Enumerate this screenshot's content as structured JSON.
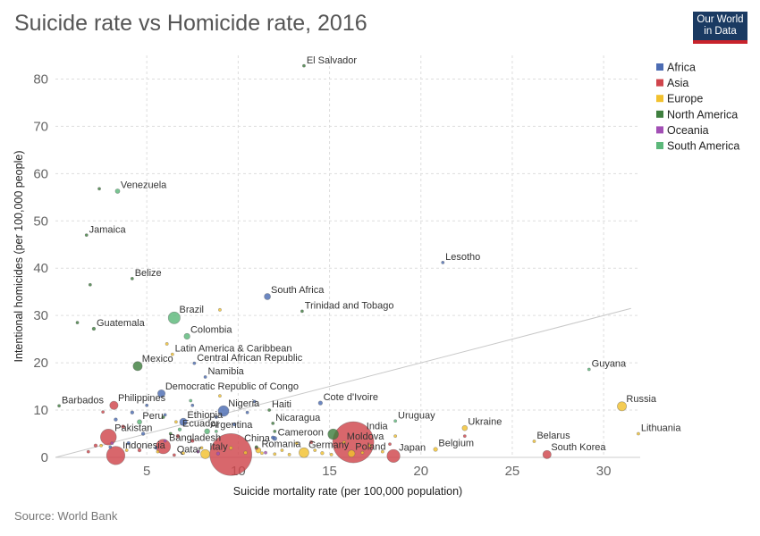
{
  "header": {
    "title": "Suicide rate vs Homicide rate, 2016",
    "logo_line1": "Our World",
    "logo_line2": "in Data"
  },
  "footer": {
    "source": "Source: World Bank"
  },
  "chart_data": {
    "type": "scatter",
    "title": "Suicide rate vs Homicide rate, 2016",
    "xlabel": "Suicide mortality rate (per 100,000 population)",
    "ylabel": "Intentional homicides (per 100,000 people)",
    "xlim": [
      0,
      32
    ],
    "ylim": [
      0,
      85
    ],
    "xticks": [
      5,
      10,
      15,
      20,
      25,
      30
    ],
    "yticks": [
      0,
      10,
      20,
      30,
      40,
      50,
      60,
      70,
      80
    ],
    "grid": true,
    "legend_position": "right",
    "reference_line": {
      "from": [
        0,
        0
      ],
      "to": [
        31.5,
        31.5
      ]
    },
    "colors": {
      "Africa": "#4c6cb3",
      "Asia": "#d0454c",
      "Europe": "#f2c12e",
      "North America": "#3f7f3f",
      "Oceania": "#a24fb5",
      "South America": "#5cb87a",
      "Aggregate": "#f2c12e"
    },
    "legend": [
      "Africa",
      "Asia",
      "Europe",
      "North America",
      "Oceania",
      "South America"
    ],
    "points": [
      {
        "label": "El Salvador",
        "region": "North America",
        "x": 13.6,
        "y": 82.8,
        "pop": 0.3
      },
      {
        "label": "Venezuela",
        "region": "South America",
        "x": 3.4,
        "y": 56.3,
        "pop": 1.5
      },
      {
        "label": "",
        "region": "North America",
        "x": 2.4,
        "y": 56.8,
        "pop": 0.3
      },
      {
        "label": "Jamaica",
        "region": "North America",
        "x": 1.7,
        "y": 47.0,
        "pop": 0.3
      },
      {
        "label": "Lesotho",
        "region": "Africa",
        "x": 21.2,
        "y": 41.2,
        "pop": 0.2
      },
      {
        "label": "Belize",
        "region": "North America",
        "x": 4.2,
        "y": 37.8,
        "pop": 0.1
      },
      {
        "label": "",
        "region": "North America",
        "x": 1.9,
        "y": 36.5,
        "pop": 0.1
      },
      {
        "label": "South Africa",
        "region": "Africa",
        "x": 11.6,
        "y": 34.0,
        "pop": 2.8
      },
      {
        "label": "Trinidad and Tobago",
        "region": "North America",
        "x": 13.5,
        "y": 30.9,
        "pop": 0.2
      },
      {
        "label": "Brazil",
        "region": "South America",
        "x": 6.5,
        "y": 29.5,
        "pop": 10
      },
      {
        "label": "",
        "region": "Europe",
        "x": 9.0,
        "y": 31.2,
        "pop": 0.1
      },
      {
        "label": "",
        "region": "North America",
        "x": 1.2,
        "y": 28.5,
        "pop": 0.1
      },
      {
        "label": "Guatemala",
        "region": "North America",
        "x": 2.1,
        "y": 27.2,
        "pop": 0.8
      },
      {
        "label": "Colombia",
        "region": "South America",
        "x": 7.2,
        "y": 25.6,
        "pop": 2.5
      },
      {
        "label": "Latin America & Caribbean",
        "region": "Aggregate",
        "x": 6.4,
        "y": 21.8,
        "pop": 0.3
      },
      {
        "label": "Central African Republic",
        "region": "Africa",
        "x": 7.6,
        "y": 19.9,
        "pop": 0.2
      },
      {
        "label": "Mexico",
        "region": "North America",
        "x": 4.5,
        "y": 19.3,
        "pop": 6
      },
      {
        "label": "",
        "region": "Europe",
        "x": 6.1,
        "y": 24.0,
        "pop": 0.1
      },
      {
        "label": "Namibia",
        "region": "Africa",
        "x": 8.2,
        "y": 17.0,
        "pop": 0.2
      },
      {
        "label": "Guyana",
        "region": "South America",
        "x": 29.2,
        "y": 18.6,
        "pop": 0.3
      },
      {
        "label": "Democratic Republic of Congo",
        "region": "Africa",
        "x": 5.8,
        "y": 13.5,
        "pop": 4
      },
      {
        "label": "Philippines",
        "region": "Asia",
        "x": 3.2,
        "y": 11.0,
        "pop": 5
      },
      {
        "label": "Barbados",
        "region": "North America",
        "x": 0.2,
        "y": 10.9,
        "pop": 0.1
      },
      {
        "label": "Cote d'Ivoire",
        "region": "Africa",
        "x": 14.5,
        "y": 11.5,
        "pop": 1.2
      },
      {
        "label": "Nigeria",
        "region": "Africa",
        "x": 9.2,
        "y": 9.8,
        "pop": 8
      },
      {
        "label": "Haiti",
        "region": "North America",
        "x": 11.7,
        "y": 10.0,
        "pop": 0.5
      },
      {
        "label": "Russia",
        "region": "Europe",
        "x": 31.0,
        "y": 10.8,
        "pop": 6
      },
      {
        "label": "Ethiopia",
        "region": "Africa",
        "x": 7.0,
        "y": 7.5,
        "pop": 4
      },
      {
        "label": "Peru",
        "region": "South America",
        "x": 4.6,
        "y": 7.5,
        "pop": 1.5
      },
      {
        "label": "Ecuador",
        "region": "South America",
        "x": 6.8,
        "y": 5.9,
        "pop": 0.8
      },
      {
        "label": "Argentina",
        "region": "South America",
        "x": 8.3,
        "y": 5.5,
        "pop": 2
      },
      {
        "label": "Nicaragua",
        "region": "North America",
        "x": 11.9,
        "y": 7.2,
        "pop": 0.3
      },
      {
        "label": "Uruguay",
        "region": "South America",
        "x": 18.6,
        "y": 7.7,
        "pop": 0.2
      },
      {
        "label": "Ukraine",
        "region": "Europe",
        "x": 22.4,
        "y": 6.2,
        "pop": 2
      },
      {
        "label": "India",
        "region": "Asia",
        "x": 16.3,
        "y": 3.2,
        "pop": 120
      },
      {
        "label": "Cameroon",
        "region": "Africa",
        "x": 12.0,
        "y": 4.0,
        "pop": 1.3
      },
      {
        "label": "",
        "region": "North America",
        "x": 15.2,
        "y": 4.9,
        "pop": 8
      },
      {
        "label": "Pakistan",
        "region": "Asia",
        "x": 2.9,
        "y": 4.3,
        "pop": 18
      },
      {
        "label": "Lithuania",
        "region": "Europe",
        "x": 31.9,
        "y": 5.0,
        "pop": 0.2
      },
      {
        "label": "Bangladesh",
        "region": "Asia",
        "x": 5.9,
        "y": 2.3,
        "pop": 15
      },
      {
        "label": "Moldova",
        "region": "Europe",
        "x": 15.8,
        "y": 3.2,
        "pop": 0.3
      },
      {
        "label": "Belarus",
        "region": "Europe",
        "x": 26.2,
        "y": 3.4,
        "pop": 0.5
      },
      {
        "label": "China",
        "region": "Asia",
        "x": 9.6,
        "y": 0.6,
        "pop": 125
      },
      {
        "label": "Indonesia",
        "region": "Asia",
        "x": 3.3,
        "y": 0.4,
        "pop": 24
      },
      {
        "label": "Germany",
        "region": "Europe",
        "x": 13.6,
        "y": 1.0,
        "pop": 7
      },
      {
        "label": "Romania",
        "region": "Europe",
        "x": 11.1,
        "y": 1.5,
        "pop": 2
      },
      {
        "label": "Italy",
        "region": "Europe",
        "x": 8.2,
        "y": 0.7,
        "pop": 6
      },
      {
        "label": "Qatar",
        "region": "Asia",
        "x": 6.5,
        "y": 0.5,
        "pop": 0.3
      },
      {
        "label": "Poland",
        "region": "Europe",
        "x": 16.2,
        "y": 0.8,
        "pop": 3.5
      },
      {
        "label": "Belgium",
        "region": "Europe",
        "x": 20.8,
        "y": 1.7,
        "pop": 1.2
      },
      {
        "label": "Japan",
        "region": "Asia",
        "x": 18.5,
        "y": 0.3,
        "pop": 12
      },
      {
        "label": "South Korea",
        "region": "Asia",
        "x": 26.9,
        "y": 0.6,
        "pop": 5
      },
      {
        "label": "",
        "region": "Asia",
        "x": 6.7,
        "y": 4.5,
        "pop": 0.8
      },
      {
        "label": "",
        "region": "Asia",
        "x": 3.7,
        "y": 6.5,
        "pop": 0.8
      },
      {
        "label": "",
        "region": "Asia",
        "x": 4.6,
        "y": 1.5,
        "pop": 0.8
      },
      {
        "label": "",
        "region": "Asia",
        "x": 7.5,
        "y": 3.5,
        "pop": 0.8
      },
      {
        "label": "",
        "region": "Asia",
        "x": 2.2,
        "y": 2.5,
        "pop": 0.8
      },
      {
        "label": "",
        "region": "Asia",
        "x": 1.8,
        "y": 1.2,
        "pop": 0.3
      },
      {
        "label": "",
        "region": "Asia",
        "x": 2.6,
        "y": 9.6,
        "pop": 0.3
      },
      {
        "label": "",
        "region": "Asia",
        "x": 11.0,
        "y": 2.0,
        "pop": 0.8
      },
      {
        "label": "",
        "region": "Asia",
        "x": 14.0,
        "y": 3.2,
        "pop": 0.8
      },
      {
        "label": "",
        "region": "Asia",
        "x": 22.4,
        "y": 4.5,
        "pop": 0.3
      },
      {
        "label": "",
        "region": "Asia",
        "x": 18.3,
        "y": 2.8,
        "pop": 0.3
      },
      {
        "label": "",
        "region": "Africa",
        "x": 3.3,
        "y": 8.0,
        "pop": 0.8
      },
      {
        "label": "",
        "region": "Africa",
        "x": 4.2,
        "y": 9.5,
        "pop": 0.8
      },
      {
        "label": "",
        "region": "Africa",
        "x": 4.8,
        "y": 5.0,
        "pop": 0.8
      },
      {
        "label": "",
        "region": "Africa",
        "x": 4.0,
        "y": 3.0,
        "pop": 0.8
      },
      {
        "label": "",
        "region": "Africa",
        "x": 5.0,
        "y": 11.0,
        "pop": 0.3
      },
      {
        "label": "",
        "region": "Africa",
        "x": 6.0,
        "y": 9.0,
        "pop": 0.3
      },
      {
        "label": "",
        "region": "Africa",
        "x": 7.5,
        "y": 11.0,
        "pop": 0.3
      },
      {
        "label": "",
        "region": "Africa",
        "x": 8.8,
        "y": 8.5,
        "pop": 0.3
      },
      {
        "label": "",
        "region": "Africa",
        "x": 9.8,
        "y": 7.0,
        "pop": 0.8
      },
      {
        "label": "",
        "region": "Africa",
        "x": 10.5,
        "y": 9.5,
        "pop": 0.3
      },
      {
        "label": "",
        "region": "Africa",
        "x": 11.9,
        "y": 4.2,
        "pop": 0.8
      },
      {
        "label": "",
        "region": "Africa",
        "x": 5.5,
        "y": 2.0,
        "pop": 0.3
      },
      {
        "label": "",
        "region": "Africa",
        "x": 3.0,
        "y": 2.2,
        "pop": 0.3
      },
      {
        "label": "",
        "region": "Africa",
        "x": 10.9,
        "y": 11.8,
        "pop": 0.3
      },
      {
        "label": "",
        "region": "Europe",
        "x": 6.6,
        "y": 7.5,
        "pop": 0.3
      },
      {
        "label": "",
        "region": "Europe",
        "x": 9.0,
        "y": 13.0,
        "pop": 0.3
      },
      {
        "label": "",
        "region": "Europe",
        "x": 8.0,
        "y": 2.0,
        "pop": 0.3
      },
      {
        "label": "",
        "region": "Europe",
        "x": 9.6,
        "y": 2.0,
        "pop": 0.8
      },
      {
        "label": "",
        "region": "Europe",
        "x": 10.4,
        "y": 1.0,
        "pop": 0.8
      },
      {
        "label": "",
        "region": "Europe",
        "x": 11.3,
        "y": 0.9,
        "pop": 0.3
      },
      {
        "label": "",
        "region": "Europe",
        "x": 12.0,
        "y": 0.7,
        "pop": 0.3
      },
      {
        "label": "",
        "region": "Europe",
        "x": 12.4,
        "y": 1.5,
        "pop": 0.3
      },
      {
        "label": "",
        "region": "Europe",
        "x": 12.8,
        "y": 0.6,
        "pop": 0.3
      },
      {
        "label": "",
        "region": "Europe",
        "x": 13.2,
        "y": 3.0,
        "pop": 0.3
      },
      {
        "label": "",
        "region": "Europe",
        "x": 14.2,
        "y": 1.5,
        "pop": 0.3
      },
      {
        "label": "",
        "region": "Europe",
        "x": 14.6,
        "y": 0.9,
        "pop": 0.8
      },
      {
        "label": "",
        "region": "Europe",
        "x": 15.1,
        "y": 0.6,
        "pop": 0.3
      },
      {
        "label": "",
        "region": "Europe",
        "x": 16.8,
        "y": 1.0,
        "pop": 0.3
      },
      {
        "label": "",
        "region": "Europe",
        "x": 17.2,
        "y": 2.5,
        "pop": 0.3
      },
      {
        "label": "",
        "region": "Europe",
        "x": 17.9,
        "y": 1.2,
        "pop": 0.3
      },
      {
        "label": "",
        "region": "Europe",
        "x": 18.6,
        "y": 4.5,
        "pop": 0.3
      },
      {
        "label": "",
        "region": "Europe",
        "x": 7.0,
        "y": 0.9,
        "pop": 0.3
      },
      {
        "label": "",
        "region": "Europe",
        "x": 5.6,
        "y": 1.2,
        "pop": 0.3
      },
      {
        "label": "",
        "region": "Europe",
        "x": 2.5,
        "y": 2.5,
        "pop": 0.3
      },
      {
        "label": "",
        "region": "Europe",
        "x": 3.9,
        "y": 1.5,
        "pop": 0.3
      },
      {
        "label": "",
        "region": "Oceania",
        "x": 3.1,
        "y": 3.0,
        "pop": 0.3
      },
      {
        "label": "",
        "region": "Oceania",
        "x": 6.0,
        "y": 3.5,
        "pop": 0.3
      },
      {
        "label": "",
        "region": "Oceania",
        "x": 11.5,
        "y": 1.0,
        "pop": 0.3
      },
      {
        "label": "",
        "region": "Oceania",
        "x": 7.8,
        "y": 1.2,
        "pop": 0.3
      },
      {
        "label": "",
        "region": "Oceania",
        "x": 8.9,
        "y": 0.8,
        "pop": 0.8
      },
      {
        "label": "",
        "region": "South America",
        "x": 8.8,
        "y": 5.5,
        "pop": 0.3
      },
      {
        "label": "",
        "region": "South America",
        "x": 7.4,
        "y": 12.0,
        "pop": 0.3
      },
      {
        "label": "",
        "region": "North America",
        "x": 5.9,
        "y": 8.5,
        "pop": 0.3
      },
      {
        "label": "",
        "region": "North America",
        "x": 6.3,
        "y": 5.0,
        "pop": 0.3
      },
      {
        "label": "",
        "region": "North America",
        "x": 12.0,
        "y": 5.5,
        "pop": 0.3
      },
      {
        "label": "",
        "region": "North America",
        "x": 11.0,
        "y": 2.2,
        "pop": 0.3
      }
    ]
  }
}
